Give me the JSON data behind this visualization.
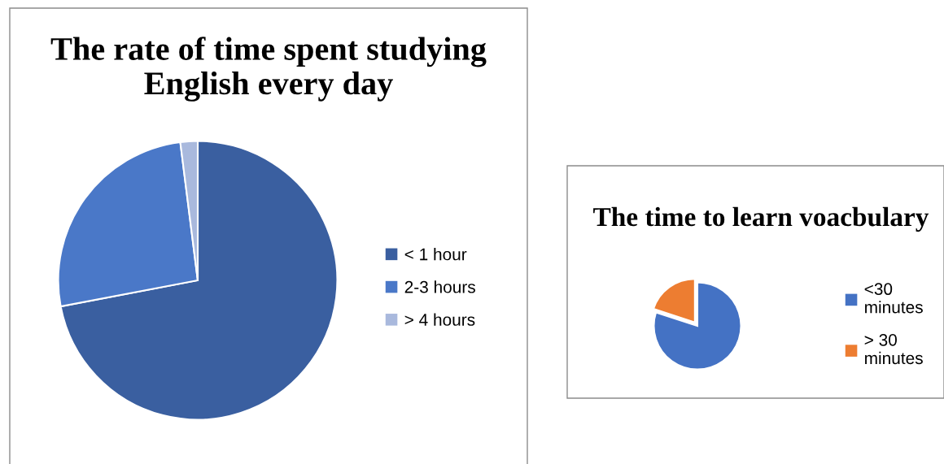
{
  "chart_data": [
    {
      "type": "pie",
      "title": "The rate of time spent studying English every day",
      "categories": [
        "< 1 hour",
        "2-3 hours",
        "> 4 hours"
      ],
      "values": [
        72,
        26,
        2
      ],
      "colors": [
        "#3a5fa0",
        "#4a78c8",
        "#a9b9dd"
      ],
      "legend": "right"
    },
    {
      "type": "pie",
      "title": "The time to learn voacbulary",
      "categories": [
        "<30 minutes",
        "> 30 minutes"
      ],
      "values": [
        80,
        20
      ],
      "colors": [
        "#4472c4",
        "#ed7d31"
      ],
      "legend": "right"
    }
  ]
}
